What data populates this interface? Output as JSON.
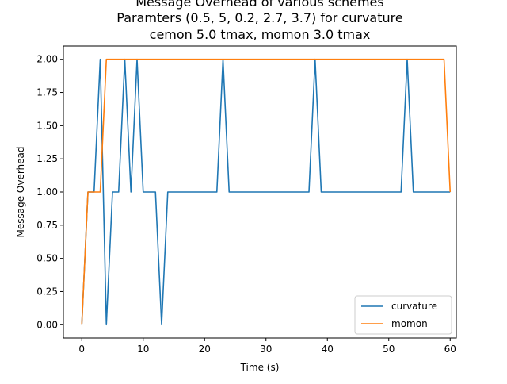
{
  "chart_data": {
    "type": "line",
    "title_lines": [
      "Message Overhead of various schemes",
      "Paramters (0.5, 5, 0.2, 2.7, 3.7) for curvature",
      "cemon 5.0 tmax, momon 3.0 tmax"
    ],
    "xlabel": "Time (s)",
    "ylabel": "Message Overhead",
    "xlim": [
      -3,
      61
    ],
    "ylim": [
      -0.1,
      2.1
    ],
    "x_ticks": [
      0,
      10,
      20,
      30,
      40,
      50,
      60
    ],
    "x_tick_labels": [
      "0",
      "10",
      "20",
      "30",
      "40",
      "50",
      "60"
    ],
    "y_ticks": [
      0,
      0.25,
      0.5,
      0.75,
      1.0,
      1.25,
      1.5,
      1.75,
      2.0
    ],
    "y_tick_labels": [
      "0.00",
      "0.25",
      "0.50",
      "0.75",
      "1.00",
      "1.25",
      "1.50",
      "1.75",
      "2.00"
    ],
    "grid": false,
    "legend_position": "lower-right",
    "series": [
      {
        "name": "curvature",
        "color": "#1f77b4",
        "x": [
          0,
          1,
          2,
          3,
          4,
          5,
          6,
          7,
          8,
          9,
          10,
          11,
          12,
          13,
          14,
          15,
          16,
          17,
          18,
          19,
          20,
          21,
          22,
          23,
          24,
          25,
          26,
          27,
          28,
          29,
          30,
          31,
          32,
          33,
          34,
          35,
          36,
          37,
          38,
          39,
          40,
          41,
          42,
          43,
          44,
          45,
          46,
          47,
          48,
          49,
          50,
          51,
          52,
          53,
          54,
          55,
          56,
          57,
          58,
          59,
          60
        ],
        "y": [
          0,
          1,
          1,
          2,
          0,
          1,
          1,
          2,
          1,
          2,
          1,
          1,
          1,
          0,
          1,
          1,
          1,
          1,
          1,
          1,
          1,
          1,
          1,
          2,
          1,
          1,
          1,
          1,
          1,
          1,
          1,
          1,
          1,
          1,
          1,
          1,
          1,
          1,
          2,
          1,
          1,
          1,
          1,
          1,
          1,
          1,
          1,
          1,
          1,
          1,
          1,
          1,
          1,
          2,
          1,
          1,
          1,
          1,
          1,
          1,
          1
        ]
      },
      {
        "name": "momon",
        "color": "#ff7f0e",
        "x": [
          0,
          1,
          2,
          3,
          4,
          5,
          6,
          7,
          8,
          9,
          10,
          11,
          12,
          13,
          14,
          15,
          16,
          17,
          18,
          19,
          20,
          21,
          22,
          23,
          24,
          25,
          26,
          27,
          28,
          29,
          30,
          31,
          32,
          33,
          34,
          35,
          36,
          37,
          38,
          39,
          40,
          41,
          42,
          43,
          44,
          45,
          46,
          47,
          48,
          49,
          50,
          51,
          52,
          53,
          54,
          55,
          56,
          57,
          58,
          59,
          60
        ],
        "y": [
          0,
          1,
          1,
          1,
          2,
          2,
          2,
          2,
          2,
          2,
          2,
          2,
          2,
          2,
          2,
          2,
          2,
          2,
          2,
          2,
          2,
          2,
          2,
          2,
          2,
          2,
          2,
          2,
          2,
          2,
          2,
          2,
          2,
          2,
          2,
          2,
          2,
          2,
          2,
          2,
          2,
          2,
          2,
          2,
          2,
          2,
          2,
          2,
          2,
          2,
          2,
          2,
          2,
          2,
          2,
          2,
          2,
          2,
          2,
          2,
          1
        ]
      }
    ]
  }
}
